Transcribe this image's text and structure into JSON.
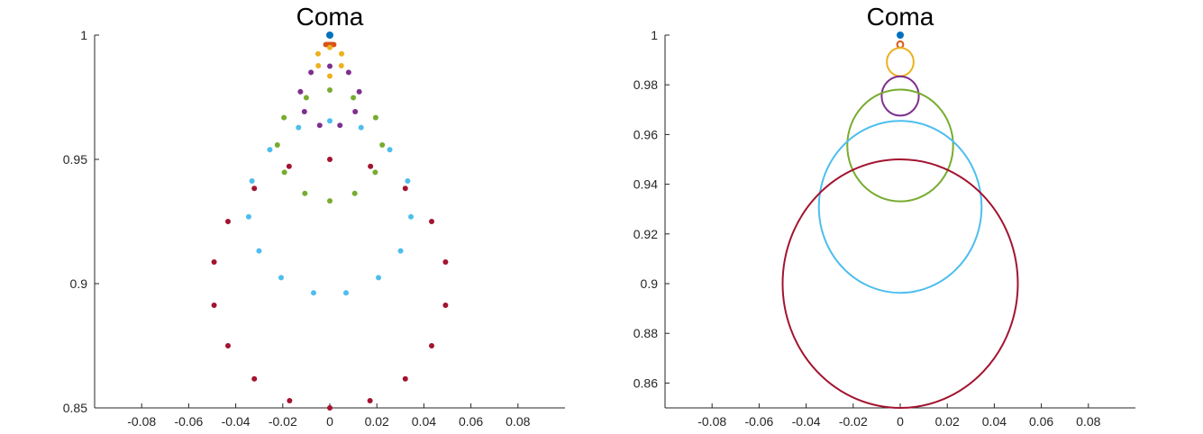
{
  "figure": {
    "colors": {
      "blue": "#0072BD",
      "orange": "#D95319",
      "yellow": "#EDB120",
      "purple": "#7E2F8E",
      "green": "#77AC30",
      "cyan": "#4DBEEE",
      "red": "#A2142F"
    }
  },
  "chart_data": [
    {
      "type": "scatter",
      "title": "Coma",
      "xlabel": "",
      "ylabel": "",
      "xlim": [
        -0.1,
        0.1
      ],
      "ylim": [
        0.85,
        1.0
      ],
      "grid": false,
      "xticks": [
        -0.08,
        -0.06,
        -0.04,
        -0.02,
        0,
        0.02,
        0.04,
        0.06,
        0.08
      ],
      "xtick_labels": [
        "-0.08",
        "-0.06",
        "-0.04",
        "-0.02",
        "0",
        "0.02",
        "0.04",
        "0.06",
        "0.08"
      ],
      "yticks": [
        0.85,
        0.9,
        0.95,
        1.0
      ],
      "ytick_labels": [
        "0.85",
        "0.9",
        "0.95",
        "1"
      ],
      "series": [
        {
          "color_key": "blue",
          "points": [
            [
              0,
              1.0
            ]
          ]
        },
        {
          "color_key": "orange",
          "points": [
            [
              0,
              0.9962
            ],
            [
              0.0008,
              0.9962
            ],
            [
              0.0017,
              0.9962
            ],
            [
              0.0008,
              0.9962
            ],
            [
              0,
              0.9962
            ],
            [
              -0.0008,
              0.9962
            ],
            [
              -0.0017,
              0.9962
            ],
            [
              -0.0008,
              0.9962
            ]
          ]
        },
        {
          "color_key": "yellow",
          "points": [
            [
              0,
              0.995
            ],
            [
              0.005,
              0.9925
            ],
            [
              0.0049,
              0.9877
            ],
            [
              0,
              0.9835
            ],
            [
              -0.0049,
              0.9877
            ],
            [
              -0.005,
              0.9925
            ]
          ]
        },
        {
          "color_key": "purple",
          "points": [
            [
              0,
              0.9875
            ],
            [
              0.008,
              0.985
            ],
            [
              0.0125,
              0.9772
            ],
            [
              0.0108,
              0.9692
            ],
            [
              0.0043,
              0.9637
            ],
            [
              -0.0043,
              0.9637
            ],
            [
              -0.0108,
              0.9692
            ],
            [
              -0.0125,
              0.9772
            ],
            [
              -0.008,
              0.985
            ]
          ]
        },
        {
          "color_key": "green",
          "points": [
            [
              0,
              0.9779
            ],
            [
              0.0195,
              0.9668
            ],
            [
              0.0223,
              0.9558
            ],
            [
              0.0193,
              0.9448
            ],
            [
              0.0106,
              0.9363
            ],
            [
              0,
              0.9333
            ],
            [
              -0.0106,
              0.9363
            ],
            [
              -0.0193,
              0.9448
            ],
            [
              -0.0223,
              0.9558
            ],
            [
              -0.0195,
              0.9668
            ],
            [
              -0.01,
              0.9748
            ],
            [
              0.01,
              0.9748
            ]
          ]
        },
        {
          "color_key": "cyan",
          "points": [
            [
              0,
              0.9655
            ],
            [
              0.0133,
              0.9628
            ],
            [
              0.0255,
              0.9539
            ],
            [
              0.0331,
              0.9413
            ],
            [
              0.0345,
              0.9269
            ],
            [
              0.0301,
              0.9132
            ],
            [
              0.0207,
              0.9024
            ],
            [
              0.0069,
              0.8963
            ],
            [
              -0.0069,
              0.8963
            ],
            [
              -0.0207,
              0.9024
            ],
            [
              -0.0301,
              0.9132
            ],
            [
              -0.0345,
              0.9269
            ],
            [
              -0.0331,
              0.9413
            ],
            [
              -0.0255,
              0.9539
            ],
            [
              -0.0133,
              0.9628
            ]
          ]
        },
        {
          "color_key": "red",
          "points": [
            [
              0,
              0.95
            ],
            [
              0.0173,
              0.9472
            ],
            [
              0.0321,
              0.9383
            ],
            [
              0.0433,
              0.925
            ],
            [
              0.0492,
              0.9087
            ],
            [
              0.0492,
              0.8913
            ],
            [
              0.0433,
              0.875
            ],
            [
              0.0321,
              0.8617
            ],
            [
              0.0171,
              0.8529
            ],
            [
              0,
              0.85
            ],
            [
              -0.0171,
              0.8529
            ],
            [
              -0.0321,
              0.8617
            ],
            [
              -0.0433,
              0.875
            ],
            [
              -0.0492,
              0.8913
            ],
            [
              -0.0492,
              0.9087
            ],
            [
              -0.0433,
              0.925
            ],
            [
              -0.0321,
              0.9383
            ],
            [
              -0.0173,
              0.9472
            ]
          ]
        }
      ]
    },
    {
      "type": "line",
      "title": "Coma",
      "xlabel": "",
      "ylabel": "",
      "xlim": [
        -0.1,
        0.1
      ],
      "ylim": [
        0.85,
        1.0
      ],
      "grid": false,
      "xticks": [
        -0.08,
        -0.06,
        -0.04,
        -0.02,
        0,
        0.02,
        0.04,
        0.06,
        0.08
      ],
      "xtick_labels": [
        "-0.08",
        "-0.06",
        "-0.04",
        "-0.02",
        "0",
        "0.02",
        "0.04",
        "0.06",
        "0.08"
      ],
      "yticks": [
        0.86,
        0.88,
        0.9,
        0.92,
        0.94,
        0.96,
        0.98,
        1.0
      ],
      "ytick_labels": [
        "0.86",
        "0.88",
        "0.9",
        "0.92",
        "0.94",
        "0.96",
        "0.98",
        "1"
      ],
      "dot": {
        "color_key": "blue",
        "x": 0,
        "y": 1.0
      },
      "circles": [
        {
          "color_key": "orange",
          "cx": 0,
          "cy": 0.9962,
          "r": 0.0013
        },
        {
          "color_key": "yellow",
          "cx": 0,
          "cy": 0.9892,
          "r": 0.0057
        },
        {
          "color_key": "purple",
          "cx": 0,
          "cy": 0.9755,
          "r": 0.0079
        },
        {
          "color_key": "green",
          "cx": 0,
          "cy": 0.9556,
          "r": 0.0225
        },
        {
          "color_key": "cyan",
          "cx": 0,
          "cy": 0.9309,
          "r": 0.0346
        },
        {
          "color_key": "red",
          "cx": 0,
          "cy": 0.9,
          "r": 0.05
        }
      ]
    }
  ]
}
